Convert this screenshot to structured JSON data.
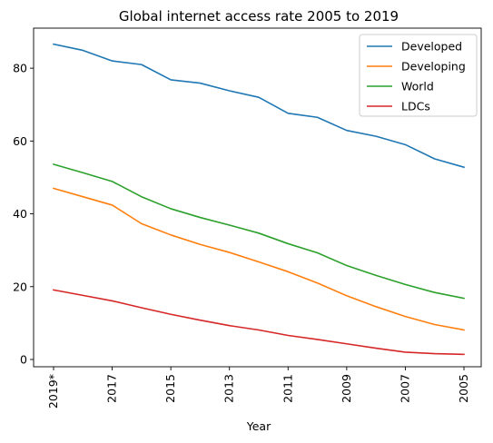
{
  "chart_data": {
    "type": "line",
    "title": "Global internet access rate 2005 to 2019",
    "xlabel": "Year",
    "ylabel": "",
    "ylim": [
      -2,
      91
    ],
    "yticks": [
      0,
      20,
      40,
      60,
      80
    ],
    "x": [
      "2019*",
      "2018",
      "2017",
      "2016",
      "2015",
      "2014",
      "2013",
      "2012",
      "2011",
      "2010",
      "2009",
      "2008",
      "2007",
      "2006",
      "2005"
    ],
    "xtick_labels": [
      "2019*",
      "2017",
      "2015",
      "2013",
      "2011",
      "2009",
      "2007",
      "2005"
    ],
    "grid": false,
    "legend_position": "top-right",
    "series": [
      {
        "name": "Developed",
        "color": "#1f77b4",
        "values": [
          86.6,
          84.9,
          82.0,
          81.0,
          76.8,
          75.9,
          73.8,
          72.0,
          67.6,
          66.5,
          62.9,
          61.3,
          59.0,
          55.1,
          52.8
        ]
      },
      {
        "name": "Developing",
        "color": "#ff7f0e",
        "values": [
          47.0,
          44.7,
          42.4,
          37.3,
          34.2,
          31.6,
          29.4,
          26.8,
          24.1,
          21.0,
          17.5,
          14.5,
          11.8,
          9.6,
          8.1
        ]
      },
      {
        "name": "World",
        "color": "#2ca02c",
        "values": [
          53.6,
          51.3,
          48.9,
          44.7,
          41.4,
          39.0,
          36.9,
          34.7,
          31.8,
          29.3,
          25.8,
          23.1,
          20.6,
          18.4,
          16.8
        ]
      },
      {
        "name": "LDCs",
        "color": "#d62728",
        "values": [
          19.1,
          17.6,
          16.1,
          14.2,
          12.4,
          10.8,
          9.3,
          8.1,
          6.6,
          5.5,
          4.3,
          3.1,
          2.0,
          1.6,
          1.4
        ]
      }
    ]
  }
}
